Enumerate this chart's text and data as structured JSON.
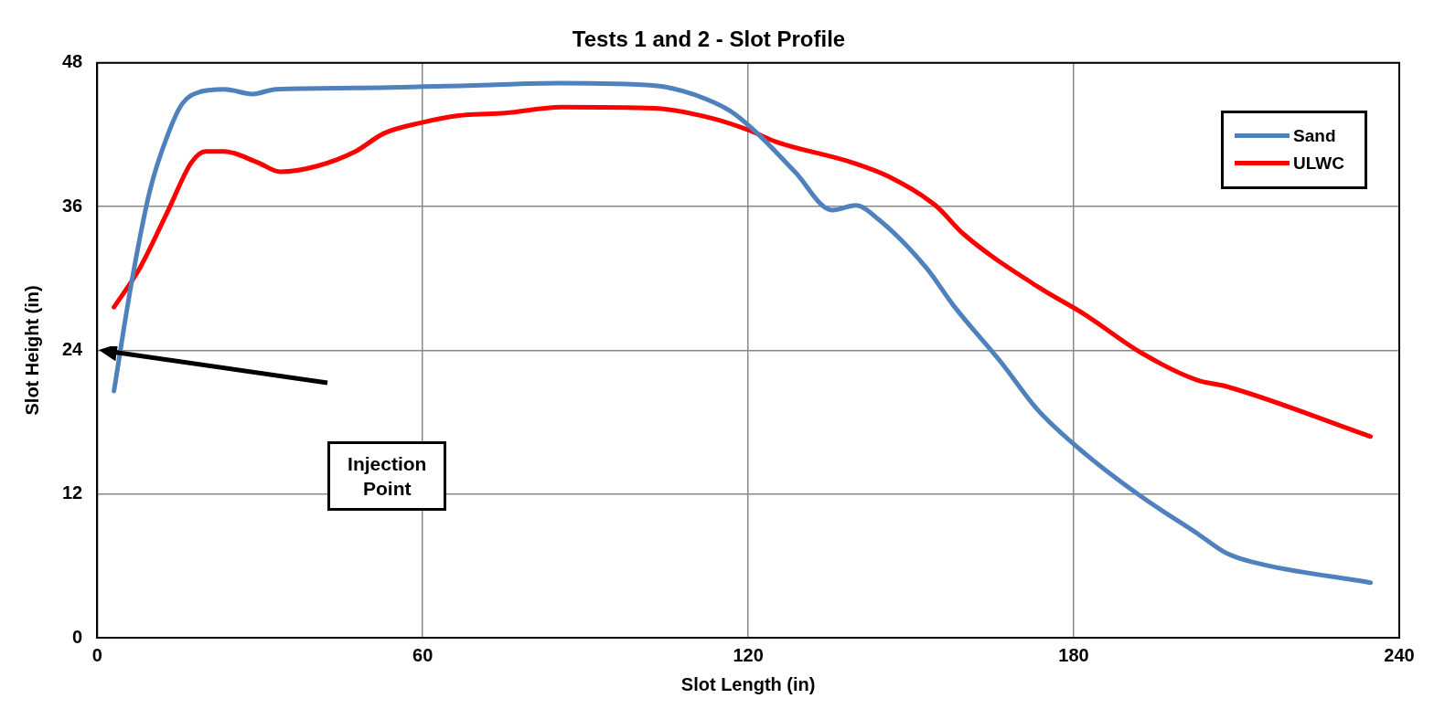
{
  "chart_data": {
    "type": "line",
    "title": "Tests 1 and 2 - Slot Profile",
    "xlabel": "Slot Length (in)",
    "ylabel": "Slot Height (in)",
    "xlim": [
      0,
      240
    ],
    "xticks": [
      0,
      60,
      120,
      180,
      240
    ],
    "ylim": [
      0,
      48
    ],
    "yticks": [
      0,
      12,
      24,
      36,
      48
    ],
    "grid": true,
    "legend": "top right",
    "marker": "none",
    "line_style": "solid",
    "series": [
      {
        "name": "Sand",
        "color": "#4f81bd",
        "x": [
          3.1,
          6.2,
          9.7,
          13.1,
          15.7,
          19.1,
          23.4,
          28.6,
          33,
          47.6,
          68.3,
          85.5,
          102.8,
          109.7,
          116.6,
          121.7,
          128.6,
          135.5,
          139.8,
          144.1,
          152.8,
          157.9,
          166.6,
          173.4,
          182,
          192.4,
          202.8,
          208,
          213.1,
          234.7
        ],
        "values": [
          20.6,
          29.3,
          37.3,
          42.1,
          44.6,
          45.6,
          45.8,
          45.4,
          45.8,
          45.9,
          46.1,
          46.3,
          46.1,
          45.4,
          44.0,
          42.1,
          38.9,
          35.7,
          36.1,
          34.9,
          30.9,
          27.7,
          23.0,
          19.0,
          15.4,
          11.8,
          8.7,
          7.1,
          6.3,
          4.6
        ]
      },
      {
        "name": "ULWC",
        "color": "#ff0000",
        "x": [
          3.1,
          7.9,
          13.1,
          17.4,
          20,
          23.4,
          29.5,
          33.8,
          40.7,
          47.6,
          52.8,
          59.7,
          66.6,
          75.2,
          85.5,
          102.8,
          113.1,
          120,
          125.2,
          139,
          145.9,
          154.5,
          159.7,
          173.4,
          182,
          192.4,
          202.8,
          208,
          234.7
        ],
        "values": [
          27.6,
          30.9,
          35.7,
          39.7,
          40.6,
          40.6,
          39.7,
          38.9,
          39.4,
          40.6,
          42.1,
          43.0,
          43.6,
          43.8,
          44.3,
          44.2,
          43.4,
          42.4,
          41.4,
          39.7,
          38.5,
          36.1,
          33.7,
          29.3,
          27.0,
          23.8,
          21.5,
          21.0,
          16.8
        ]
      }
    ],
    "annotations": [
      "Injection Point"
    ]
  }
}
